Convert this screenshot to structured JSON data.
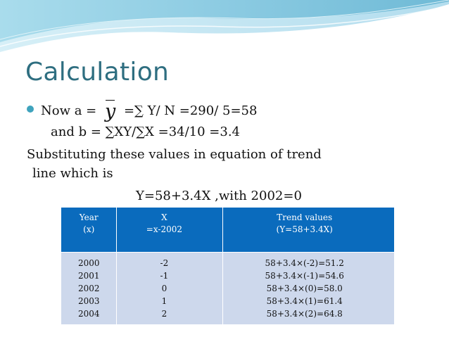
{
  "slide": {
    "title": "Calculation",
    "line1_prefix": "Now    a  = ",
    "y_symbol": "y",
    "line1_suffix": " =∑ Y/ N =290/ 5=58",
    "line2": "and   b  =   ∑XY/∑X =34/10 =3.4",
    "line3": "Substituting these values in equation of trend",
    "line4": "line which is",
    "line5": "Y=58+3.4X  ,with 2002=0"
  },
  "table": {
    "headers": [
      {
        "line1": "Year",
        "line2": "(x)"
      },
      {
        "line1": "X",
        "line2": "=x-2002"
      },
      {
        "line1": "Trend values",
        "line2": "(Y=58+3.4X)"
      }
    ],
    "years": [
      "2000",
      "2001",
      "2002",
      "2003",
      "2004"
    ],
    "x_values": [
      "-2",
      "-1",
      "0",
      "1",
      "2"
    ],
    "trend_values": [
      "58+3.4×(-2)=51.2",
      "58+3.4×(-1)=54.6",
      "58+3.4×(0)=58.0",
      "58+3.4×(1)=61.4",
      "58+3.4×(2)=64.8"
    ]
  },
  "colors": {
    "title": "#2e6e80",
    "bullet": "#3fa3bd",
    "header_bg": "#0a6bbd",
    "body_bg": "#cdd8ec",
    "wave": "#9fd3e6"
  }
}
